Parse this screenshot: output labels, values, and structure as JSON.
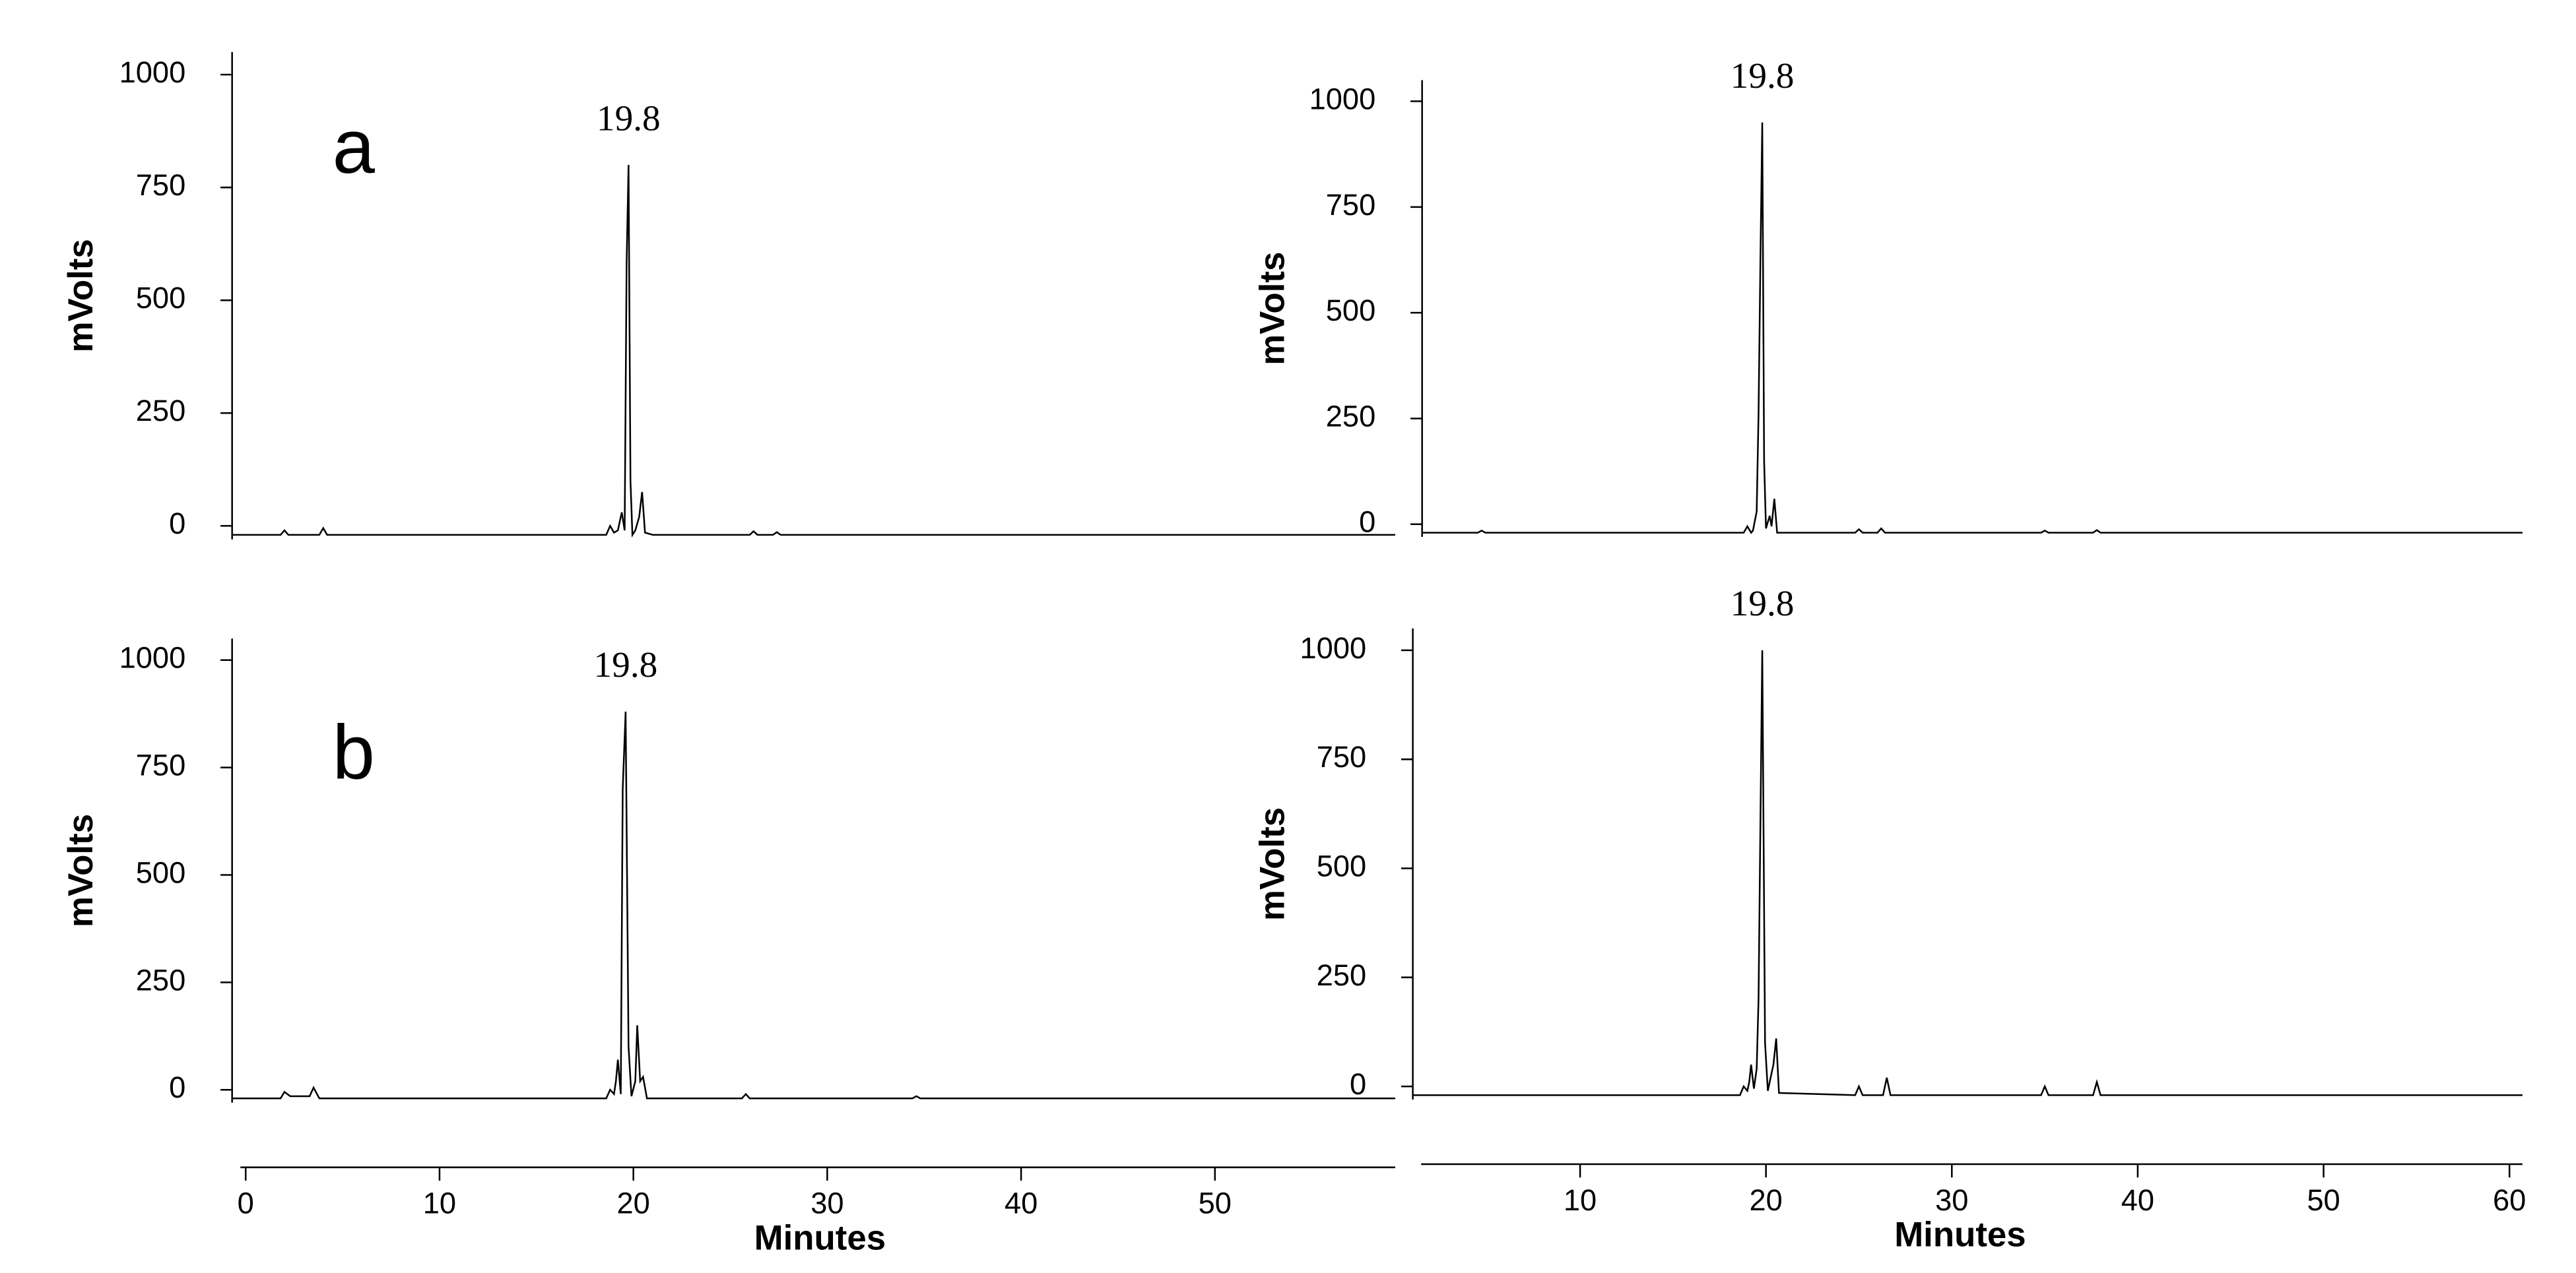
{
  "chart_data": [
    {
      "type": "line",
      "panel_label": "a",
      "ylabel": "mVolts",
      "annotation": "19.8",
      "color": "#000000",
      "xlim": [
        -0.7,
        59.3
      ],
      "ylim": [
        -30,
        1050
      ],
      "yticks": [
        0,
        250,
        500,
        750,
        1000
      ],
      "x": [
        -0.7,
        1.8,
        2,
        2.2,
        3.8,
        4,
        4.2,
        18.6,
        18.8,
        19.0,
        19.2,
        19.4,
        19.55,
        19.65,
        19.75,
        19.85,
        19.95,
        20.1,
        20.3,
        20.45,
        20.6,
        21,
        26,
        26.2,
        26.4,
        27.2,
        27.4,
        27.6,
        59.3
      ],
      "values": [
        -20,
        -20,
        -10,
        -20,
        -20,
        -5,
        -20,
        -20,
        0,
        -15,
        -10,
        30,
        -10,
        580,
        800,
        100,
        -20,
        -10,
        20,
        75,
        -15,
        -20,
        -20,
        -12,
        -20,
        -20,
        -14,
        -20,
        -20
      ]
    },
    {
      "type": "line",
      "ylabel": "mVolts",
      "annotation": "19.8",
      "color": "#000000",
      "xlim": [
        1.5,
        60.7
      ],
      "ylim": [
        -30,
        1050
      ],
      "yticks": [
        0,
        250,
        500,
        750,
        1000
      ],
      "x": [
        1.5,
        4.5,
        4.7,
        4.9,
        18.8,
        19.0,
        19.2,
        19.3,
        19.5,
        19.6,
        19.7,
        19.8,
        19.9,
        20.0,
        20.2,
        20.3,
        20.45,
        20.6,
        24.8,
        25.0,
        25.2,
        26.0,
        26.2,
        26.4,
        34.8,
        35,
        35.2,
        37.6,
        37.8,
        38,
        60.7
      ],
      "values": [
        -20,
        -20,
        -15,
        -20,
        -20,
        -5,
        -20,
        -15,
        30,
        260,
        620,
        950,
        150,
        -10,
        20,
        -5,
        60,
        -20,
        -20,
        -12,
        -20,
        -20,
        -10,
        -20,
        -20,
        -15,
        -20,
        -20,
        -14,
        -20,
        -20
      ]
    },
    {
      "type": "line",
      "panel_label": "b",
      "ylabel": "mVolts",
      "xlabel": "Minutes",
      "annotation": "19.8",
      "color": "#000000",
      "xlim": [
        -0.7,
        59.3
      ],
      "ylim": [
        -30,
        1050
      ],
      "yticks": [
        0,
        250,
        500,
        750,
        1000
      ],
      "xticks": [
        0,
        10,
        20,
        30,
        40,
        50
      ],
      "x": [
        -0.7,
        1.8,
        2,
        2.3,
        3.3,
        3.5,
        3.8,
        18.6,
        18.8,
        19.0,
        19.1,
        19.2,
        19.35,
        19.45,
        19.6,
        19.75,
        19.9,
        20.1,
        20.2,
        20.35,
        20.5,
        20.7,
        25.6,
        25.8,
        26.0,
        34.4,
        34.6,
        34.8,
        59.3
      ],
      "values": [
        -20,
        -20,
        -5,
        -15,
        -15,
        5,
        -20,
        -20,
        0,
        -10,
        20,
        70,
        -10,
        700,
        880,
        100,
        -15,
        20,
        150,
        20,
        30,
        -20,
        -20,
        -10,
        -20,
        -20,
        -15,
        -20,
        -20
      ]
    },
    {
      "type": "line",
      "ylabel": "mVolts",
      "xlabel": "Minutes",
      "annotation": "19.8",
      "color": "#000000",
      "xlim": [
        1,
        60.7
      ],
      "ylim": [
        -30,
        1050
      ],
      "yticks": [
        0,
        250,
        500,
        750,
        1000
      ],
      "xticks": [
        10,
        20,
        30,
        40,
        50,
        60
      ],
      "x": [
        1,
        18.6,
        18.8,
        19.0,
        19.1,
        19.2,
        19.35,
        19.5,
        19.6,
        19.7,
        19.8,
        19.95,
        20.1,
        20.3,
        20.4,
        20.55,
        20.7,
        24.8,
        25.0,
        25.2,
        26.3,
        26.5,
        26.7,
        34.8,
        35,
        35.2,
        37.6,
        37.8,
        38,
        60.7
      ],
      "values": [
        -20,
        -20,
        0,
        -10,
        10,
        50,
        -5,
        40,
        200,
        600,
        1000,
        100,
        -10,
        30,
        50,
        110,
        -15,
        -20,
        0,
        -20,
        -20,
        20,
        -20,
        -20,
        0,
        -20,
        -20,
        10,
        -20,
        -20
      ]
    }
  ]
}
